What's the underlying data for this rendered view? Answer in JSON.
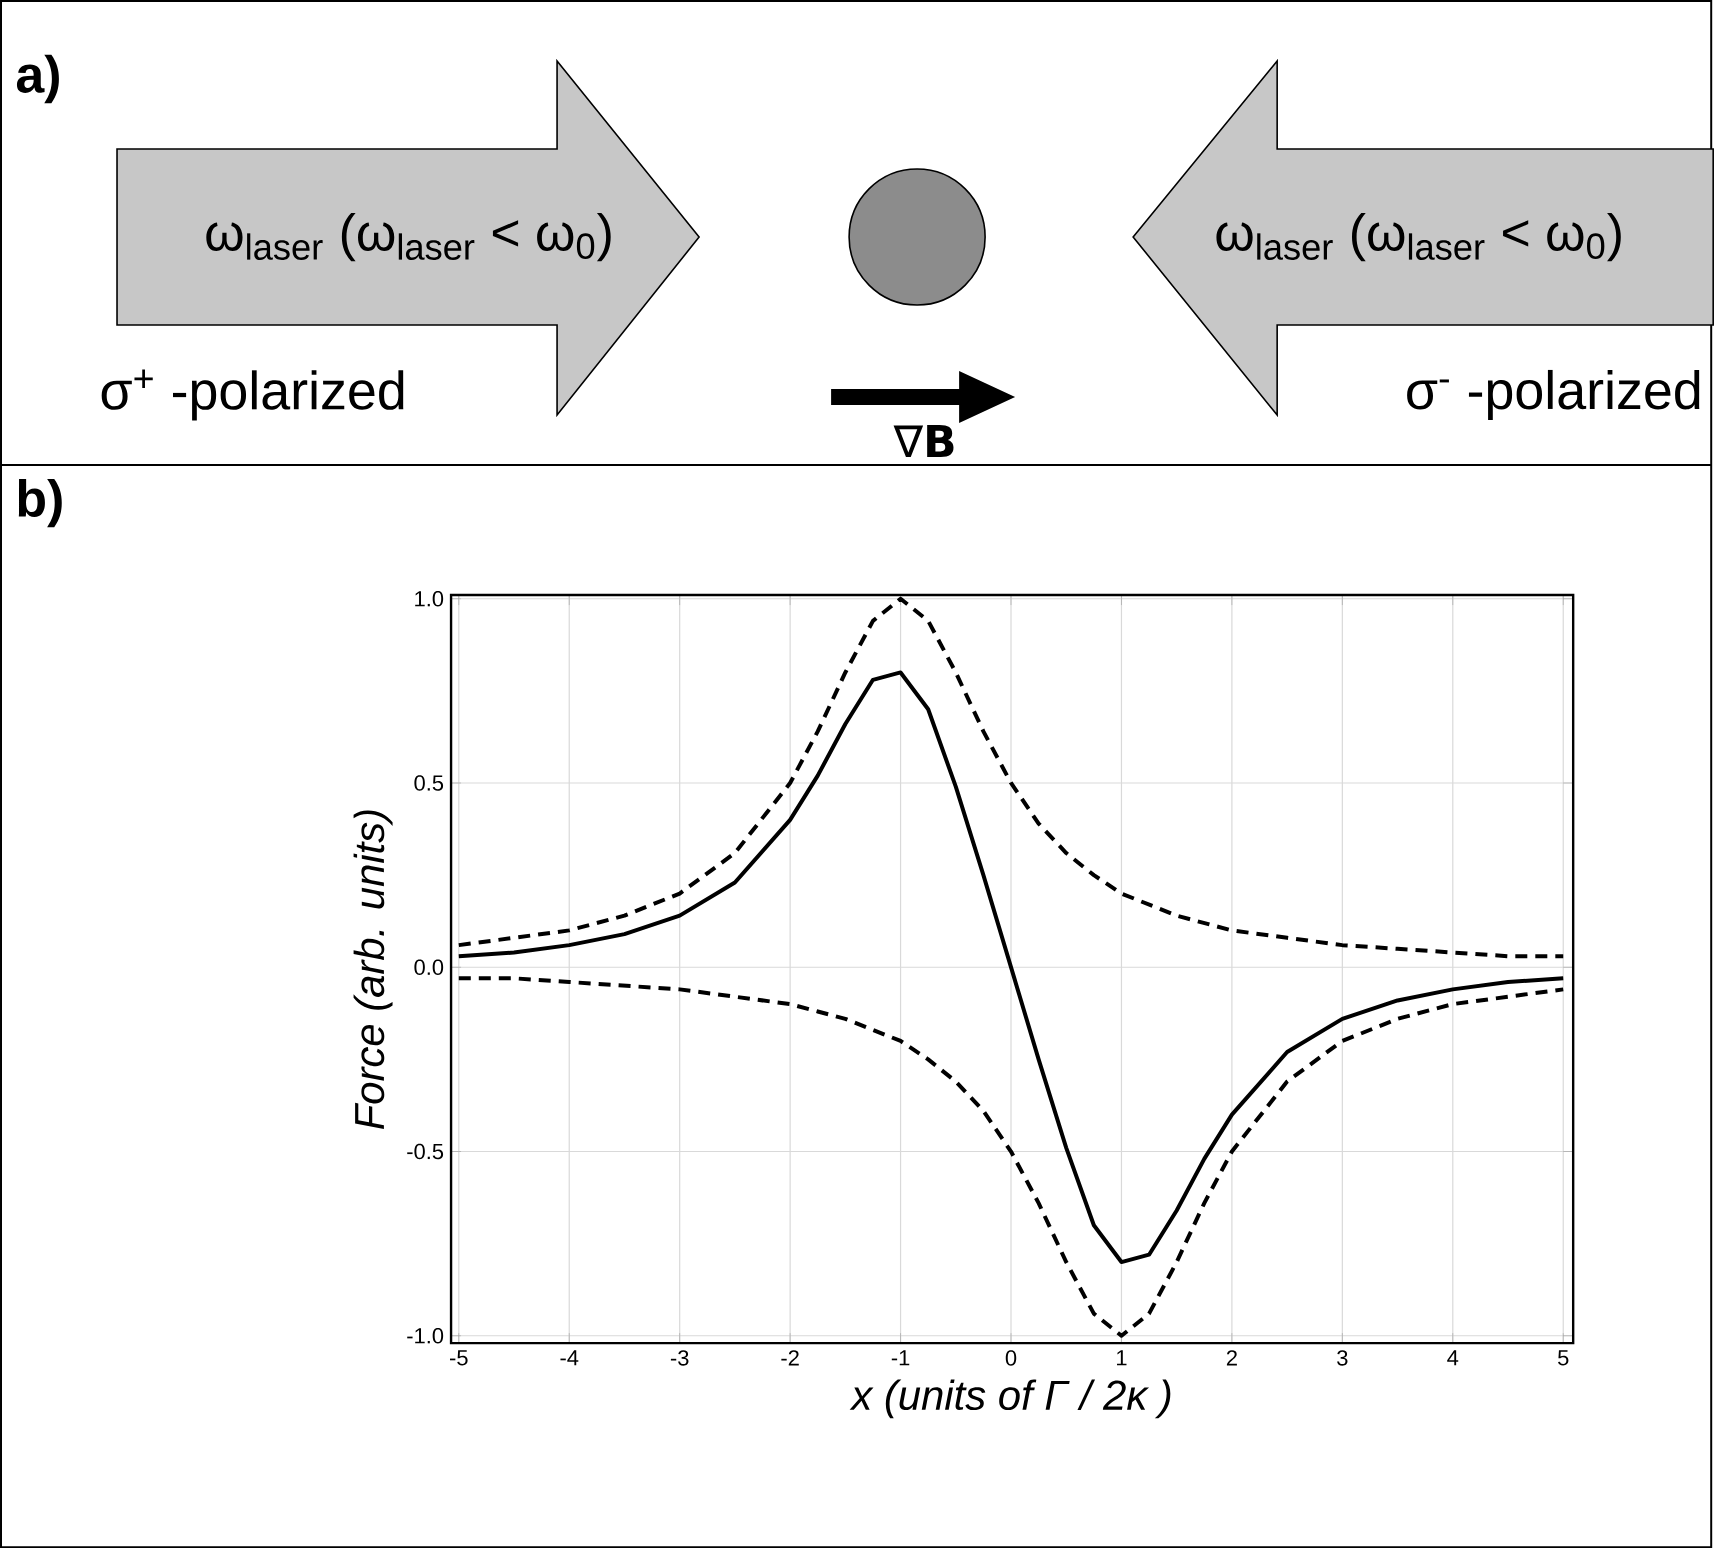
{
  "chart_data": {
    "type": "line",
    "xlabel": "x (units of Γ / 2κ )",
    "ylabel": "Force (arb. units)",
    "x": [
      -5,
      -4.5,
      -4,
      -3.5,
      -3,
      -2.5,
      -2,
      -1.75,
      -1.5,
      -1.25,
      -1,
      -0.75,
      -0.5,
      -0.25,
      0,
      0.25,
      0.5,
      0.75,
      1,
      1.25,
      1.5,
      1.75,
      2,
      2.5,
      3,
      3.5,
      4,
      4.5,
      5
    ],
    "series": [
      {
        "color": "#000000",
        "line_style": "dashed",
        "values": [
          0.06,
          0.08,
          0.1,
          0.14,
          0.2,
          0.31,
          0.5,
          0.64,
          0.8,
          0.94,
          1.0,
          0.94,
          0.8,
          0.64,
          0.5,
          0.39,
          0.31,
          0.25,
          0.2,
          0.17,
          0.14,
          0.12,
          0.1,
          0.08,
          0.06,
          0.05,
          0.04,
          0.03,
          0.03
        ]
      },
      {
        "color": "#000000",
        "line_style": "dashed",
        "values": [
          -0.03,
          -0.03,
          -0.04,
          -0.05,
          -0.06,
          -0.08,
          -0.1,
          -0.12,
          -0.14,
          -0.17,
          -0.2,
          -0.25,
          -0.31,
          -0.39,
          -0.5,
          -0.64,
          -0.8,
          -0.94,
          -1.0,
          -0.94,
          -0.8,
          -0.64,
          -0.5,
          -0.31,
          -0.2,
          -0.14,
          -0.1,
          -0.08,
          -0.06
        ]
      },
      {
        "color": "#000000",
        "line_style": "solid",
        "values": [
          0.03,
          0.04,
          0.06,
          0.09,
          0.14,
          0.23,
          0.4,
          0.52,
          0.66,
          0.78,
          0.8,
          0.7,
          0.49,
          0.25,
          0,
          -0.25,
          -0.49,
          -0.7,
          -0.8,
          -0.78,
          -0.66,
          -0.52,
          -0.4,
          -0.23,
          -0.14,
          -0.09,
          -0.06,
          -0.04,
          -0.03
        ]
      }
    ],
    "xlim": [
      -5.07,
      5.09
    ],
    "ylim": [
      -1.02,
      1.01
    ],
    "xticks": [
      -5,
      -4,
      -3,
      -2,
      -1,
      0,
      1,
      2,
      3,
      4,
      5
    ],
    "yticks": [
      {
        "value": -1,
        "label": "-1.0"
      },
      {
        "value": -0.5,
        "label": "-0.5"
      },
      {
        "value": 0,
        "label": "0.0"
      },
      {
        "value": 0.5,
        "label": "0.5"
      },
      {
        "value": 1,
        "label": "1.0"
      }
    ],
    "grid": true,
    "annotations": [
      "a)",
      "ω$_{laser}$ (ω$_{laser}$ < ω$_{0}$)",
      "ω$_{laser}$ (ω$_{laser}$ < ω$_{0}$)",
      "σ$^{+}$ -polarized",
      "σ$^{-}$ -polarized",
      "∇**B**",
      "b)"
    ]
  }
}
